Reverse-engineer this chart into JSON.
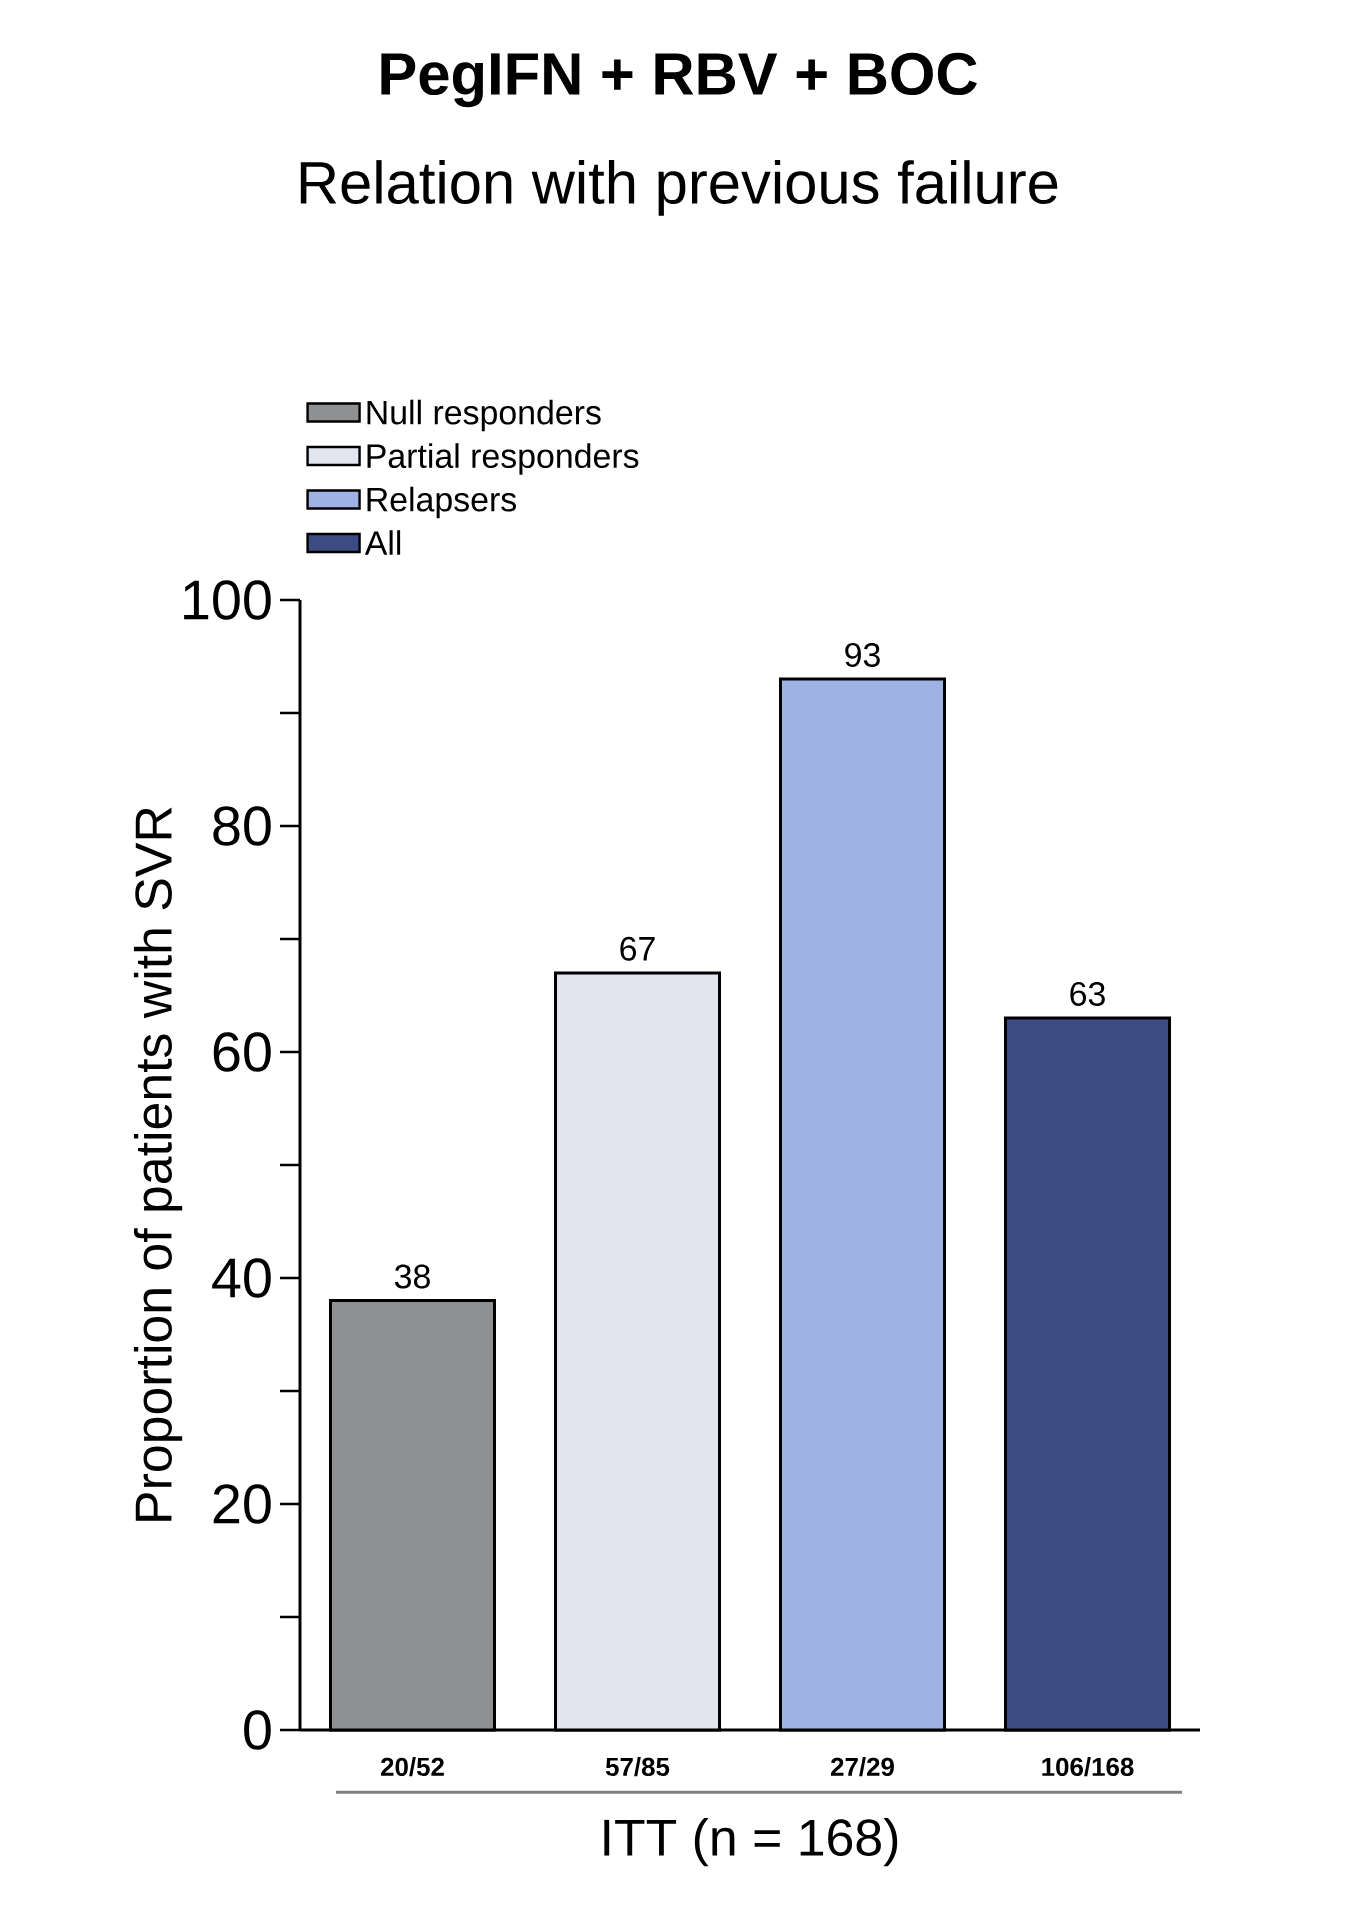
{
  "chart_data": {
    "type": "bar",
    "title": "PegIFN + RBV + BOC",
    "subtitle": "Relation with previous failure",
    "categories": [
      "20/52",
      "57/85",
      "27/29",
      "106/168"
    ],
    "series": [
      {
        "name": "Null responders",
        "color": "#8f9092",
        "values": [
          38,
          null,
          null,
          null
        ]
      },
      {
        "name": "Partial responders",
        "color": "#e2e4ef",
        "values": [
          null,
          67,
          null,
          null
        ]
      },
      {
        "name": "Relapsers",
        "color": "#9fb2e4",
        "values": [
          null,
          null,
          93,
          null
        ]
      },
      {
        "name": "All",
        "color": "#3c4c82",
        "values": [
          null,
          null,
          null,
          63
        ]
      }
    ],
    "xlabel": "ITT (n = 168)",
    "ylabel": "Proportion of patients with SVR",
    "ylim": [
      0,
      100
    ],
    "yticks": [
      0,
      {
        "value": 10,
        "label": null
      },
      20,
      {
        "value": 30,
        "label": null
      },
      40,
      {
        "value": 50,
        "label": null
      },
      60,
      {
        "value": 70,
        "label": null
      },
      80,
      {
        "value": 90,
        "label": null
      },
      100
    ],
    "data_labels": true,
    "legend": "top left",
    "grid": false
  }
}
